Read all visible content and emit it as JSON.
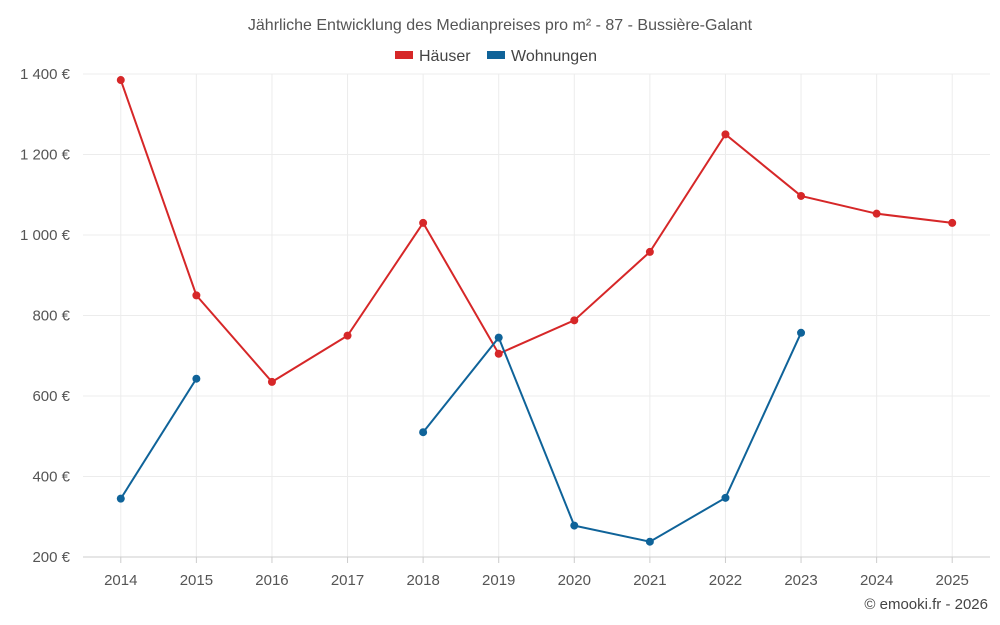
{
  "chart_data": {
    "type": "line",
    "title": "Jährliche Entwicklung des Medianpreises pro m² - 87 - Bussière-Galant",
    "categories": [
      "2014",
      "2015",
      "2016",
      "2017",
      "2018",
      "2019",
      "2020",
      "2021",
      "2022",
      "2023",
      "2024",
      "2025"
    ],
    "series": [
      {
        "name": "Häuser",
        "color": "#d62728",
        "values": [
          1385,
          850,
          635,
          750,
          1030,
          705,
          788,
          958,
          1250,
          1097,
          1053,
          1030
        ]
      },
      {
        "name": "Wohnungen",
        "color": "#0f6399",
        "values": [
          345,
          643,
          null,
          null,
          510,
          745,
          278,
          238,
          347,
          757,
          null,
          null
        ]
      }
    ],
    "ylim": [
      200,
      1400
    ],
    "yticks": [
      200,
      400,
      600,
      800,
      1000,
      1200,
      1400
    ],
    "ytick_labels": [
      "200 €",
      "400 €",
      "600 €",
      "800 €",
      "1 000 €",
      "1 200 €",
      "1 400 €"
    ],
    "xlabel": "",
    "ylabel": "",
    "legend_position": "top-center",
    "grid": true,
    "credit": "© emooki.fr - 2026"
  }
}
